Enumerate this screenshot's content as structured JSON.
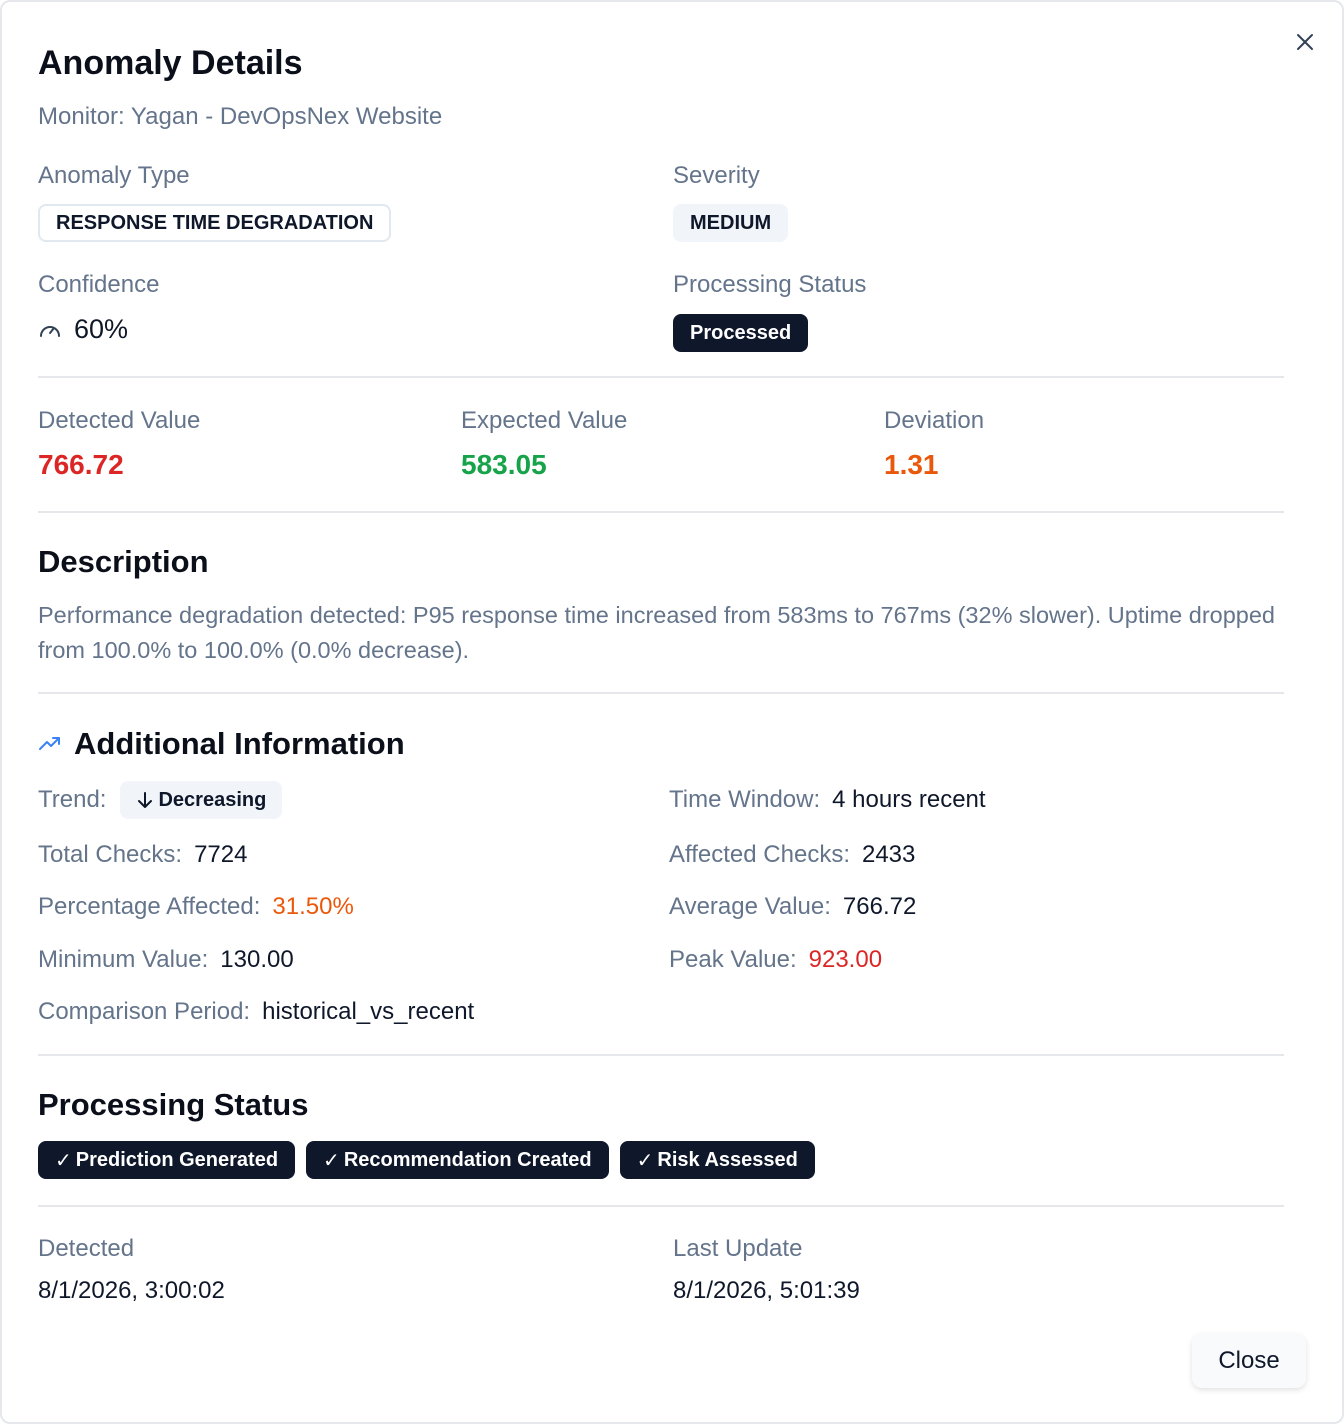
{
  "dialog": {
    "title": "Anomaly Details",
    "subtitle": "Monitor: Yagan - DevOpsNex Website",
    "close_label": "Close",
    "close_icon": "close-icon"
  },
  "summary": {
    "anomaly_type_label": "Anomaly Type",
    "anomaly_type_value": "RESPONSE TIME DEGRADATION",
    "severity_label": "Severity",
    "severity_value": "MEDIUM",
    "confidence_label": "Confidence",
    "confidence_value": "60%",
    "processing_status_label": "Processing Status",
    "processing_status_value": "Processed"
  },
  "metrics": {
    "detected_label": "Detected Value",
    "detected_value": "766.72",
    "expected_label": "Expected Value",
    "expected_value": "583.05",
    "deviation_label": "Deviation",
    "deviation_value": "1.31"
  },
  "description": {
    "title": "Description",
    "text": "Performance degradation detected: P95 response time increased from 583ms to 767ms (32% slower). Uptime dropped from 100.0% to 100.0% (0.0% decrease)."
  },
  "additional": {
    "title": "Additional Information",
    "trend_label": "Trend:",
    "trend_value": "Decreasing",
    "time_window_label": "Time Window:",
    "time_window_value": "4 hours recent",
    "total_checks_label": "Total Checks:",
    "total_checks_value": "7724",
    "affected_checks_label": "Affected Checks:",
    "affected_checks_value": "2433",
    "pct_affected_label": "Percentage Affected:",
    "pct_affected_value": "31.50%",
    "avg_value_label": "Average Value:",
    "avg_value_value": "766.72",
    "min_value_label": "Minimum Value:",
    "min_value_value": "130.00",
    "peak_value_label": "Peak Value:",
    "peak_value_value": "923.00",
    "comparison_label": "Comparison Period:",
    "comparison_value": "historical_vs_recent"
  },
  "processing": {
    "title": "Processing Status",
    "steps": [
      "Prediction Generated",
      "Recommendation Created",
      "Risk Assessed"
    ]
  },
  "timestamps": {
    "detected_label": "Detected",
    "detected_value": "8/1/2026, 3:00:02",
    "updated_label": "Last Update",
    "updated_value": "8/1/2026, 5:01:39"
  },
  "colors": {
    "red": "#dc2626",
    "green": "#16a34a",
    "orange": "#ea580c",
    "blue": "#3b82f6",
    "dark": "#0f172a",
    "muted": "#64748b"
  }
}
